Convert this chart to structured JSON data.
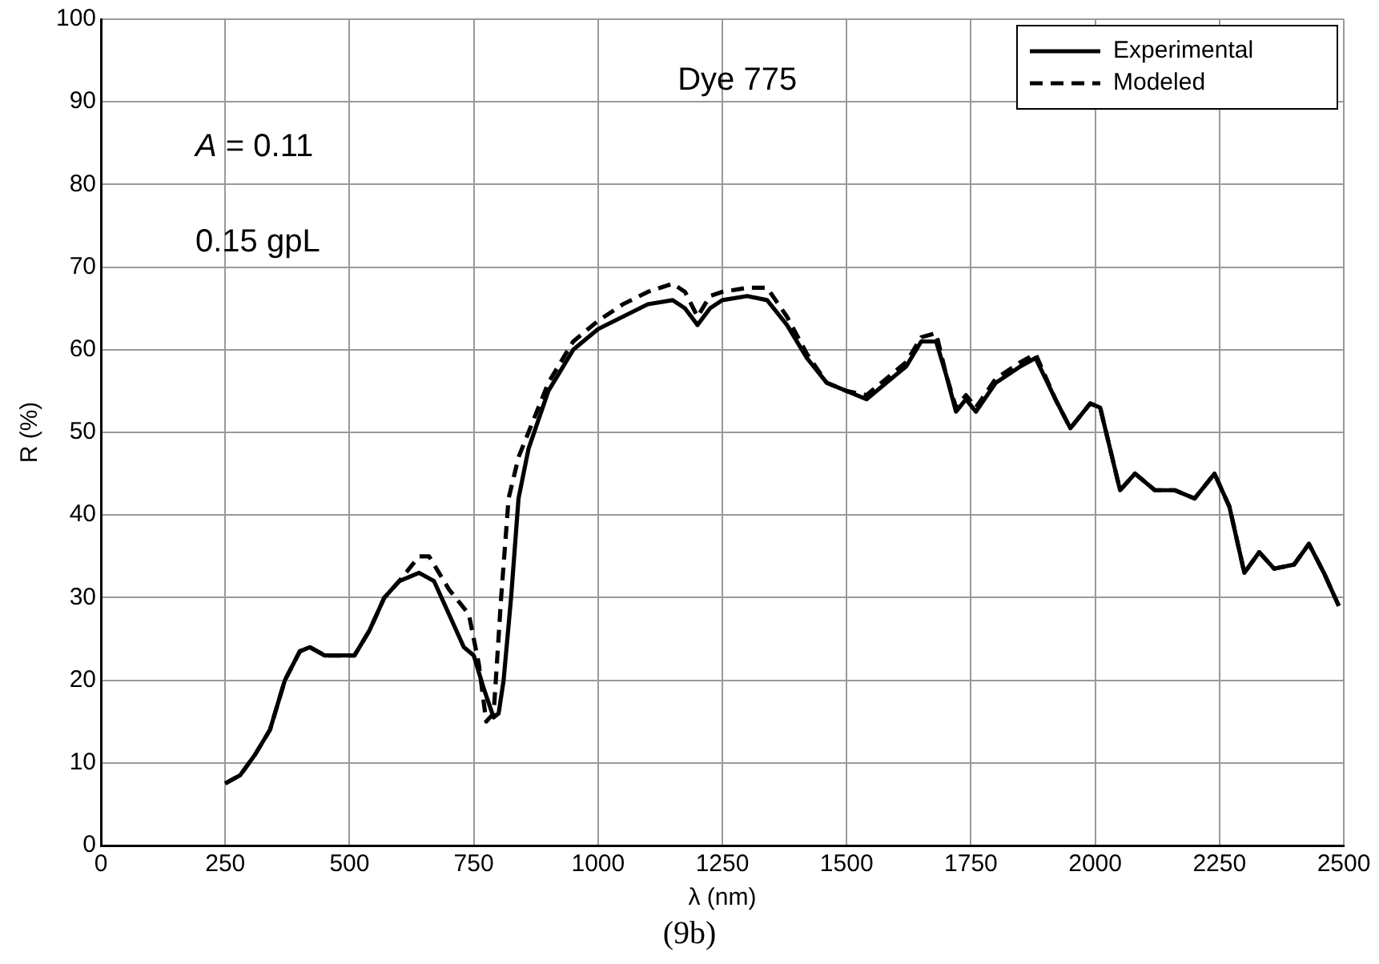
{
  "chart_data": {
    "type": "line",
    "xlabel": "λ (nm)",
    "ylabel": "R (%)",
    "xlim": [
      0,
      2500
    ],
    "xticks": [
      0,
      250,
      500,
      750,
      1000,
      1250,
      1500,
      1750,
      2000,
      2250,
      2500
    ],
    "ylim": [
      0,
      100
    ],
    "yticks": [
      0,
      10,
      20,
      30,
      40,
      50,
      60,
      70,
      80,
      90,
      100
    ],
    "grid": true,
    "legend": "top right",
    "marker": "none",
    "annotations": [
      "Dye 775",
      "A = 0.11",
      "0.15 gpL",
      "(9b)"
    ],
    "series": [
      {
        "name": "Experimental",
        "color": "#000000",
        "line_style": "solid",
        "x": [
          250,
          280,
          310,
          340,
          370,
          400,
          420,
          450,
          480,
          510,
          540,
          570,
          600,
          640,
          670,
          700,
          730,
          750,
          770,
          790,
          800,
          810,
          825,
          840,
          860,
          900,
          950,
          1000,
          1050,
          1100,
          1150,
          1175,
          1200,
          1225,
          1250,
          1300,
          1340,
          1380,
          1420,
          1460,
          1500,
          1540,
          1580,
          1620,
          1650,
          1680,
          1700,
          1720,
          1740,
          1760,
          1800,
          1850,
          1880,
          1920,
          1950,
          1990,
          2010,
          2050,
          2080,
          2120,
          2160,
          2200,
          2240,
          2270,
          2300,
          2330,
          2360,
          2400,
          2430,
          2460,
          2490
        ],
        "values": [
          7.5,
          8.5,
          11,
          14,
          20,
          23.5,
          24,
          23,
          23,
          23,
          26,
          30,
          32,
          33,
          32,
          28,
          24,
          23,
          19,
          15.5,
          16,
          20,
          30,
          42,
          48,
          55,
          60,
          62.5,
          64,
          65.5,
          66,
          65,
          63,
          65,
          66,
          66.5,
          66,
          63,
          59,
          56,
          55,
          54,
          56,
          58,
          61,
          61,
          57,
          52.5,
          54,
          52.5,
          56,
          58,
          59,
          54,
          50.5,
          53.5,
          53,
          43,
          45,
          43,
          43,
          42,
          45,
          41,
          33,
          35.5,
          33.5,
          34,
          36.5,
          33,
          29
        ]
      },
      {
        "name": "Modeled",
        "color": "#000000",
        "line_style": "dashed",
        "x": [
          250,
          280,
          310,
          340,
          370,
          400,
          420,
          450,
          480,
          510,
          540,
          570,
          600,
          640,
          660,
          700,
          740,
          760,
          775,
          790,
          805,
          820,
          840,
          900,
          950,
          1000,
          1050,
          1100,
          1150,
          1175,
          1200,
          1225,
          1250,
          1300,
          1340,
          1380,
          1420,
          1460,
          1500,
          1540,
          1580,
          1620,
          1650,
          1680,
          1700,
          1720,
          1740,
          1760,
          1800,
          1850,
          1880,
          1920,
          1950,
          1990,
          2010,
          2050,
          2080,
          2120,
          2160,
          2200,
          2240,
          2270,
          2300,
          2330,
          2360,
          2400,
          2430,
          2460,
          2490
        ],
        "values": [
          7.5,
          8.5,
          11,
          14,
          20,
          23.5,
          24,
          23,
          23,
          23,
          26,
          30,
          32,
          35,
          35,
          31,
          28,
          22,
          15,
          16,
          30,
          42,
          47,
          56,
          61,
          63.5,
          65.5,
          67,
          68,
          67,
          64,
          66.5,
          67,
          67.5,
          67.5,
          64,
          59.5,
          56,
          55,
          54.5,
          56.5,
          58.5,
          61.5,
          62,
          57,
          53,
          54.5,
          53,
          56.5,
          58.5,
          59.5,
          54,
          50.5,
          53.5,
          53,
          43,
          45,
          43,
          43,
          42,
          45,
          41,
          33,
          35.5,
          33.5,
          34,
          36.5,
          33,
          29
        ]
      }
    ]
  }
}
